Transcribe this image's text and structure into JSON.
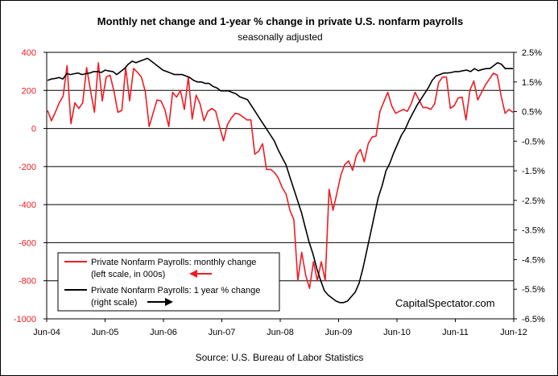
{
  "chart_data": {
    "type": "line",
    "title": "Monthly net change and 1-year %  change in private U.S. nonfarm payrolls",
    "subtitle": "seasonally adjusted",
    "source": "Source: U.S. Bureau of Labor Statistics",
    "watermark": "CapitalSpectator.com",
    "x_tick_labels": [
      "Jun-04",
      "Jun-05",
      "Jun-06",
      "Jun-07",
      "Jun-08",
      "Jun-09",
      "Jun-10",
      "Jun-11",
      "Jun-12"
    ],
    "left_axis": {
      "ylim": [
        -1000,
        400
      ],
      "ticks": [
        400,
        200,
        0,
        -200,
        -400,
        -600,
        -800,
        -1000
      ],
      "tick_labels": [
        "400",
        "200",
        "0",
        "-200",
        "-400",
        "-600",
        "-800",
        "-1000"
      ]
    },
    "right_axis": {
      "ylim": [
        -6.5,
        2.5
      ],
      "ticks": [
        2.5,
        1.5,
        0.5,
        -0.5,
        -1.5,
        -2.5,
        -3.5,
        -4.5,
        -5.5,
        -6.5
      ],
      "tick_labels": [
        "2.5%",
        "1.5%",
        "0.5%",
        "-0.5%",
        "-1.5%",
        "-2.5%",
        "-3.5%",
        "-4.5%",
        "-5.5%",
        "-6.5%"
      ]
    },
    "grid": "horizontal",
    "legend_position": "bottom-left",
    "series": [
      {
        "name": "Private Nonfarm Payrolls: monthly change",
        "legend_line2": "(left scale, in 000s)",
        "axis": "left",
        "color": "#ee1c24",
        "arrow": "left",
        "values": [
          95,
          40,
          85,
          135,
          170,
          330,
          25,
          135,
          105,
          135,
          320,
          200,
          85,
          345,
          145,
          270,
          280,
          195,
          85,
          95,
          320,
          145,
          315,
          295,
          270,
          195,
          10,
          80,
          150,
          145,
          100,
          10,
          190,
          165,
          200,
          100,
          270,
          50,
          175,
          130,
          40,
          90,
          105,
          90,
          10,
          -65,
          20,
          55,
          80,
          75,
          60,
          45,
          45,
          -135,
          -120,
          -80,
          -215,
          -215,
          -230,
          -260,
          -310,
          -345,
          -430,
          -480,
          -800,
          -650,
          -770,
          -840,
          -700,
          -800,
          -700,
          -800,
          -320,
          -430,
          -340,
          -245,
          -190,
          -170,
          -220,
          -140,
          -110,
          -175,
          -80,
          -45,
          -40,
          90,
          140,
          190,
          120,
          80,
          90,
          100,
          90,
          130,
          190,
          150,
          110,
          110,
          100,
          130,
          240,
          270,
          270,
          105,
          120,
          160,
          165,
          45,
          200,
          250,
          150,
          190,
          230,
          260,
          290,
          280,
          170,
          80,
          100,
          85
        ]
      },
      {
        "name": "Private Nonfarm Payrolls:  1 year % change",
        "legend_line2": "(right scale)",
        "axis": "right",
        "color": "#000000",
        "arrow": "right",
        "values": [
          1.55,
          1.6,
          1.62,
          1.65,
          1.6,
          1.78,
          1.75,
          1.78,
          1.8,
          1.75,
          1.78,
          1.8,
          1.85,
          1.85,
          1.82,
          1.9,
          1.87,
          1.85,
          1.75,
          1.85,
          1.95,
          2.1,
          2.2,
          2.15,
          2.2,
          2.25,
          2.3,
          2.2,
          2.1,
          2.0,
          1.9,
          1.85,
          1.8,
          1.75,
          1.75,
          1.75,
          1.7,
          1.65,
          1.55,
          1.5,
          1.5,
          1.45,
          1.45,
          1.35,
          1.3,
          1.2,
          1.2,
          1.2,
          1.15,
          1.1,
          1.0,
          0.95,
          0.9,
          0.7,
          0.5,
          0.3,
          0.1,
          -0.1,
          -0.3,
          -0.5,
          -0.8,
          -1.05,
          -1.3,
          -1.7,
          -2.1,
          -2.5,
          -2.9,
          -3.4,
          -3.9,
          -4.3,
          -4.8,
          -5.2,
          -5.55,
          -5.7,
          -5.8,
          -5.9,
          -5.95,
          -5.95,
          -5.9,
          -5.75,
          -5.6,
          -5.3,
          -4.8,
          -4.2,
          -3.6,
          -3.0,
          -2.4,
          -2.0,
          -1.5,
          -1.25,
          -0.9,
          -0.6,
          -0.3,
          -0.1,
          0.2,
          0.45,
          0.7,
          0.9,
          1.1,
          1.3,
          1.55,
          1.7,
          1.75,
          1.8,
          1.8,
          1.82,
          1.85,
          1.85,
          1.88,
          1.9,
          1.85,
          1.95,
          1.88,
          1.92,
          1.95,
          1.95,
          2.05,
          2.15,
          2.1,
          1.95,
          1.95,
          1.95
        ]
      }
    ]
  }
}
